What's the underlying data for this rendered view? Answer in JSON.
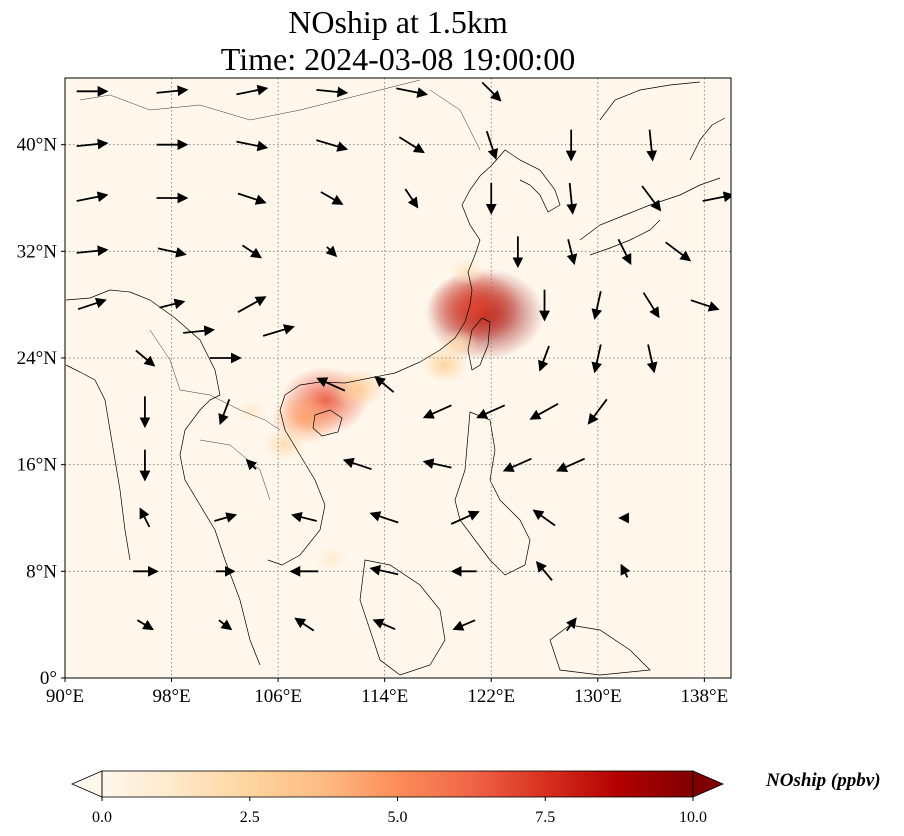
{
  "title": {
    "line1": "NOship at 1.5km",
    "line2": "Time: 2024-03-08 19:00:00"
  },
  "chart_data": {
    "type": "heatmap",
    "subtype": "map-with-wind-vectors",
    "title": "NOship at 1.5km\nTime: 2024-03-08 19:00:00",
    "lon_range": [
      90,
      140
    ],
    "lat_range": [
      0,
      45
    ],
    "x_ticks": [
      "90°E",
      "98°E",
      "106°E",
      "114°E",
      "122°E",
      "130°E",
      "138°E"
    ],
    "x_tick_values": [
      90,
      98,
      106,
      114,
      122,
      130,
      138
    ],
    "y_ticks": [
      "0°",
      "8°N",
      "16°N",
      "24°N",
      "32°N",
      "40°N"
    ],
    "y_tick_values": [
      0,
      8,
      16,
      24,
      32,
      40
    ],
    "grid": true,
    "colormap": "OrRd",
    "colorbar": {
      "label": "NOship (ppbv)",
      "range": [
        0,
        10
      ],
      "ticks": [
        "0.0",
        "2.5",
        "5.0",
        "7.5",
        "10.0"
      ],
      "tick_values": [
        0,
        2.5,
        5,
        7.5,
        10
      ],
      "extend": "both",
      "placement": "bottom"
    },
    "hotspots": [
      {
        "lon": 121.5,
        "lat": 27.3,
        "value": 9.5
      },
      {
        "lon": 120.8,
        "lat": 27.8,
        "value": 7.0
      },
      {
        "lon": 109.5,
        "lat": 20.8,
        "value": 6.5
      },
      {
        "lon": 108.0,
        "lat": 19.5,
        "value": 4.5
      },
      {
        "lon": 112.0,
        "lat": 21.7,
        "value": 3.0
      },
      {
        "lon": 118.5,
        "lat": 23.5,
        "value": 2.5
      },
      {
        "lon": 119.5,
        "lat": 25.0,
        "value": 2.0
      },
      {
        "lon": 106.5,
        "lat": 17.5,
        "value": 2.0
      },
      {
        "lon": 120.2,
        "lat": 30.5,
        "value": 1.5
      },
      {
        "lon": 110.0,
        "lat": 9.0,
        "value": 1.0
      },
      {
        "lon": 104.0,
        "lat": 20.0,
        "value": 1.0
      }
    ],
    "wind_vectors": [
      {
        "lon": 92,
        "lat": 44,
        "u": 1.0,
        "v": 0.0
      },
      {
        "lon": 98,
        "lat": 44,
        "u": 1.0,
        "v": 0.1
      },
      {
        "lon": 104,
        "lat": 44,
        "u": 1.0,
        "v": 0.2
      },
      {
        "lon": 110,
        "lat": 44,
        "u": 1.0,
        "v": -0.1
      },
      {
        "lon": 116,
        "lat": 44,
        "u": 1.0,
        "v": -0.2
      },
      {
        "lon": 122,
        "lat": 44,
        "u": 0.6,
        "v": -0.6
      },
      {
        "lon": 92,
        "lat": 40,
        "u": 1.0,
        "v": 0.1
      },
      {
        "lon": 98,
        "lat": 40,
        "u": 1.0,
        "v": 0.0
      },
      {
        "lon": 104,
        "lat": 40,
        "u": 1.0,
        "v": -0.2
      },
      {
        "lon": 110,
        "lat": 40,
        "u": 1.0,
        "v": -0.3
      },
      {
        "lon": 116,
        "lat": 40,
        "u": 0.8,
        "v": -0.5
      },
      {
        "lon": 122,
        "lat": 40,
        "u": 0.3,
        "v": -0.9
      },
      {
        "lon": 128,
        "lat": 40,
        "u": 0.0,
        "v": -1.0
      },
      {
        "lon": 134,
        "lat": 40,
        "u": 0.1,
        "v": -1.0
      },
      {
        "lon": 92,
        "lat": 36,
        "u": 1.0,
        "v": 0.2
      },
      {
        "lon": 98,
        "lat": 36,
        "u": 1.0,
        "v": 0.0
      },
      {
        "lon": 104,
        "lat": 36,
        "u": 0.9,
        "v": -0.3
      },
      {
        "lon": 110,
        "lat": 36,
        "u": 0.7,
        "v": -0.4
      },
      {
        "lon": 116,
        "lat": 36,
        "u": 0.4,
        "v": -0.6
      },
      {
        "lon": 122,
        "lat": 36,
        "u": 0.0,
        "v": -1.0
      },
      {
        "lon": 128,
        "lat": 36,
        "u": 0.1,
        "v": -1.0
      },
      {
        "lon": 134,
        "lat": 36,
        "u": 0.6,
        "v": -0.8
      },
      {
        "lon": 139,
        "lat": 36,
        "u": 1.0,
        "v": 0.2
      },
      {
        "lon": 92,
        "lat": 32,
        "u": 1.0,
        "v": 0.1
      },
      {
        "lon": 98,
        "lat": 32,
        "u": 0.9,
        "v": -0.2
      },
      {
        "lon": 104,
        "lat": 32,
        "u": 0.6,
        "v": -0.4
      },
      {
        "lon": 110,
        "lat": 32,
        "u": 0.3,
        "v": -0.3
      },
      {
        "lon": 124,
        "lat": 32,
        "u": 0.0,
        "v": -1.0
      },
      {
        "lon": 128,
        "lat": 32,
        "u": 0.2,
        "v": -0.8
      },
      {
        "lon": 132,
        "lat": 32,
        "u": 0.4,
        "v": -0.8
      },
      {
        "lon": 136,
        "lat": 32,
        "u": 0.8,
        "v": -0.6
      },
      {
        "lon": 92,
        "lat": 28,
        "u": 0.9,
        "v": 0.3
      },
      {
        "lon": 98,
        "lat": 28,
        "u": 0.8,
        "v": 0.2
      },
      {
        "lon": 104,
        "lat": 28,
        "u": 0.9,
        "v": 0.5
      },
      {
        "lon": 126,
        "lat": 28,
        "u": 0.0,
        "v": -1.0
      },
      {
        "lon": 130,
        "lat": 28,
        "u": -0.2,
        "v": -0.9
      },
      {
        "lon": 134,
        "lat": 28,
        "u": 0.5,
        "v": -0.8
      },
      {
        "lon": 138,
        "lat": 28,
        "u": 0.9,
        "v": -0.3
      },
      {
        "lon": 100,
        "lat": 26,
        "u": 1.0,
        "v": 0.1
      },
      {
        "lon": 106,
        "lat": 26,
        "u": 1.0,
        "v": 0.3
      },
      {
        "lon": 96,
        "lat": 24,
        "u": 0.6,
        "v": -0.5
      },
      {
        "lon": 102,
        "lat": 24,
        "u": 1.0,
        "v": 0.0
      },
      {
        "lon": 110,
        "lat": 22,
        "u": -0.9,
        "v": 0.4
      },
      {
        "lon": 114,
        "lat": 22,
        "u": -0.6,
        "v": 0.5
      },
      {
        "lon": 126,
        "lat": 24,
        "u": -0.3,
        "v": -0.8
      },
      {
        "lon": 130,
        "lat": 24,
        "u": -0.2,
        "v": -0.9
      },
      {
        "lon": 134,
        "lat": 24,
        "u": 0.2,
        "v": -0.9
      },
      {
        "lon": 96,
        "lat": 20,
        "u": 0.0,
        "v": -1.0
      },
      {
        "lon": 102,
        "lat": 20,
        "u": -0.3,
        "v": -0.8
      },
      {
        "lon": 118,
        "lat": 20,
        "u": -0.9,
        "v": -0.4
      },
      {
        "lon": 122,
        "lat": 20,
        "u": -0.9,
        "v": -0.4
      },
      {
        "lon": 126,
        "lat": 20,
        "u": -0.9,
        "v": -0.5
      },
      {
        "lon": 130,
        "lat": 20,
        "u": -0.6,
        "v": -0.8
      },
      {
        "lon": 96,
        "lat": 16,
        "u": 0.0,
        "v": -1.0
      },
      {
        "lon": 104,
        "lat": 16,
        "u": -0.3,
        "v": 0.3
      },
      {
        "lon": 112,
        "lat": 16,
        "u": -0.9,
        "v": 0.3
      },
      {
        "lon": 118,
        "lat": 16,
        "u": -0.9,
        "v": 0.2
      },
      {
        "lon": 124,
        "lat": 16,
        "u": -0.9,
        "v": -0.4
      },
      {
        "lon": 128,
        "lat": 16,
        "u": -0.9,
        "v": -0.4
      },
      {
        "lon": 96,
        "lat": 12,
        "u": -0.3,
        "v": 0.6
      },
      {
        "lon": 102,
        "lat": 12,
        "u": 0.7,
        "v": 0.2
      },
      {
        "lon": 108,
        "lat": 12,
        "u": -0.8,
        "v": 0.2
      },
      {
        "lon": 114,
        "lat": 12,
        "u": -0.9,
        "v": 0.3
      },
      {
        "lon": 120,
        "lat": 12,
        "u": 0.9,
        "v": 0.4
      },
      {
        "lon": 126,
        "lat": 12,
        "u": -0.7,
        "v": 0.5
      },
      {
        "lon": 132,
        "lat": 12,
        "u": -0.3,
        "v": 0.0
      },
      {
        "lon": 96,
        "lat": 8,
        "u": 0.8,
        "v": 0.0
      },
      {
        "lon": 102,
        "lat": 8,
        "u": 0.6,
        "v": 0.0
      },
      {
        "lon": 108,
        "lat": 8,
        "u": -0.9,
        "v": 0.0
      },
      {
        "lon": 114,
        "lat": 8,
        "u": -0.9,
        "v": 0.2
      },
      {
        "lon": 120,
        "lat": 8,
        "u": -0.8,
        "v": 0.0
      },
      {
        "lon": 126,
        "lat": 8,
        "u": -0.5,
        "v": 0.6
      },
      {
        "lon": 132,
        "lat": 8,
        "u": -0.2,
        "v": 0.4
      },
      {
        "lon": 96,
        "lat": 4,
        "u": 0.5,
        "v": -0.3
      },
      {
        "lon": 102,
        "lat": 4,
        "u": 0.4,
        "v": -0.3
      },
      {
        "lon": 108,
        "lat": 4,
        "u": -0.6,
        "v": 0.4
      },
      {
        "lon": 114,
        "lat": 4,
        "u": -0.7,
        "v": 0.3
      },
      {
        "lon": 120,
        "lat": 4,
        "u": -0.7,
        "v": -0.3
      },
      {
        "lon": 128,
        "lat": 4,
        "u": 0.3,
        "v": 0.4
      }
    ]
  }
}
